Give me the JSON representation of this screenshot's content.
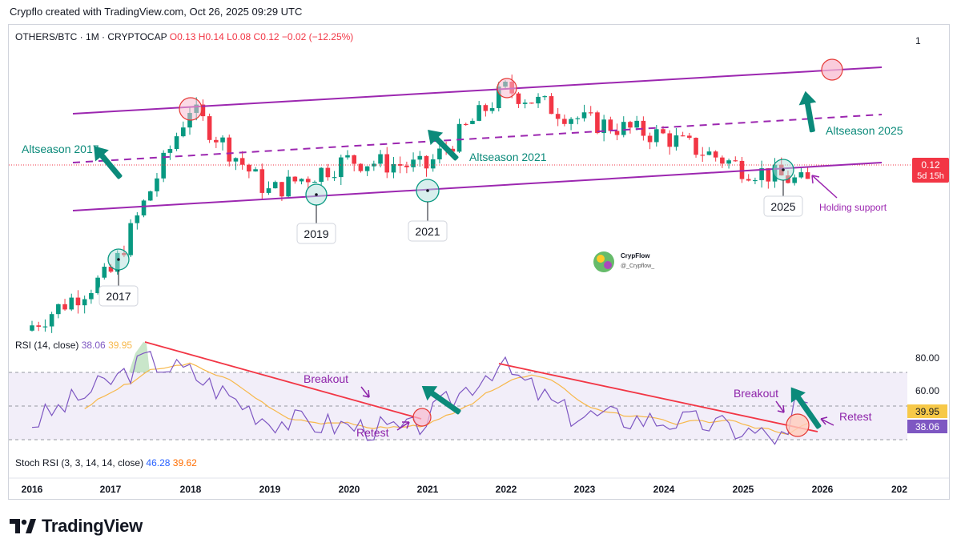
{
  "caption": "Crypflo created with TradingView.com, Oct 26, 2025 09:29 UTC",
  "brand": "TradingView",
  "watermark": {
    "name": "CrypFlow",
    "handle": "@_Crypflow_"
  },
  "colors": {
    "up": "#089981",
    "down": "#f23645",
    "channel": "#9c27b0",
    "annotation_green": "#0b8a7a",
    "rsi_line": "#7e57c2",
    "rsi_ma": "#f7b84b",
    "trendline": "#f23645",
    "rsi_band": "#ede7f6"
  },
  "chart_data": [
    {
      "type": "candlestick",
      "symbol": "OTHERS/BTC",
      "interval": "1M",
      "exchange": "CRYPTOCAP",
      "ohlc_label": {
        "o": "O0.13",
        "h": "H0.14",
        "l": "L0.08",
        "c": "C0.12",
        "chg": "−0.02 (−12.25%)"
      },
      "x": [
        "2016",
        "2017",
        "2018",
        "2019",
        "2020",
        "2021",
        "2022",
        "2023",
        "2024",
        "2025",
        "2026",
        "202"
      ],
      "price_axis_label": "1",
      "last_price": "0.12",
      "countdown": "5d 15h",
      "yearly_close_points": [
        {
          "x": "2016",
          "y": 0.03
        },
        {
          "x": "2017",
          "y": 0.05
        },
        {
          "x": "2018",
          "y": 0.25
        },
        {
          "x": "2019",
          "y": 0.11
        },
        {
          "x": "2020",
          "y": 0.15
        },
        {
          "x": "2021",
          "y": 0.14
        },
        {
          "x": "2022",
          "y": 0.3
        },
        {
          "x": "2023",
          "y": 0.22
        },
        {
          "x": "2024",
          "y": 0.19
        },
        {
          "x": "2025",
          "y": 0.14
        },
        {
          "x": "2025.8",
          "y": 0.12
        }
      ],
      "annotations": {
        "season_labels": [
          "Altseason 2017",
          "Altseason 2021",
          "Altseason 2025"
        ],
        "year_labels": [
          "2017",
          "2019",
          "2021",
          "2025"
        ],
        "support_note": "Holding support"
      }
    },
    {
      "type": "line",
      "name": "RSI (14, close)",
      "values_label": {
        "rsi": "38.06",
        "ma": "39.95"
      },
      "levels": [
        "80.00",
        "60.00"
      ],
      "tags": {
        "ma": "39.95",
        "rsi": "38.06"
      },
      "annotations": {
        "breakout": [
          "Breakout",
          "Breakout"
        ],
        "retest": [
          "Retest",
          "Retest"
        ]
      }
    },
    {
      "type": "line",
      "name": "Stoch RSI (3, 3, 14, 14, close)",
      "values_label": {
        "k": "46.28",
        "d": "39.62"
      }
    }
  ]
}
